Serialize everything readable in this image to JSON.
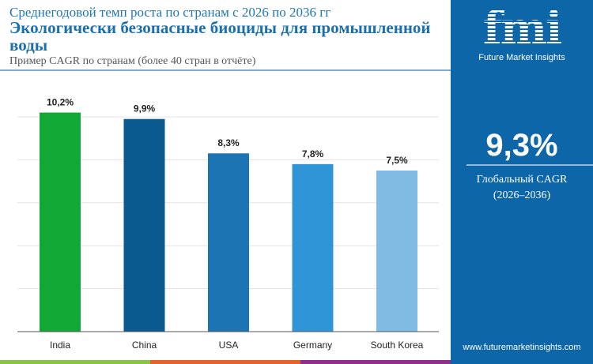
{
  "header": {
    "subtitle": "Среднегодовой темп роста по странам с 2026 по 2036 гг",
    "title": "Экологически безопасные биоциды для промышленной воды",
    "note": "Пример CAGR по странам (более 40 стран в отчёте)"
  },
  "panel": {
    "logo": "fmi",
    "logo_sub": "Future Market Insights",
    "global_value": "9,3%",
    "global_label": "Глобальный CAGR",
    "global_period": "(2026–2036)",
    "url": "www.futuremarketinsights.com"
  },
  "colors": {
    "stripe": [
      "#8bc34a",
      "#e0622e",
      "#8e2f8a"
    ],
    "panel": "#0d66a8"
  },
  "chart_data": {
    "type": "bar",
    "categories": [
      "India",
      "China",
      "USA",
      "Germany",
      "South Korea"
    ],
    "values": [
      10.2,
      9.9,
      8.3,
      7.8,
      7.5
    ],
    "labels": [
      "10,2%",
      "9,9%",
      "8,3%",
      "7,8%",
      "7,5%"
    ],
    "colors": [
      "#11a836",
      "#0b5a8f",
      "#1d74b2",
      "#2f95d6",
      "#7fbbe3"
    ],
    "ylim": [
      0,
      10
    ],
    "grid": true
  }
}
